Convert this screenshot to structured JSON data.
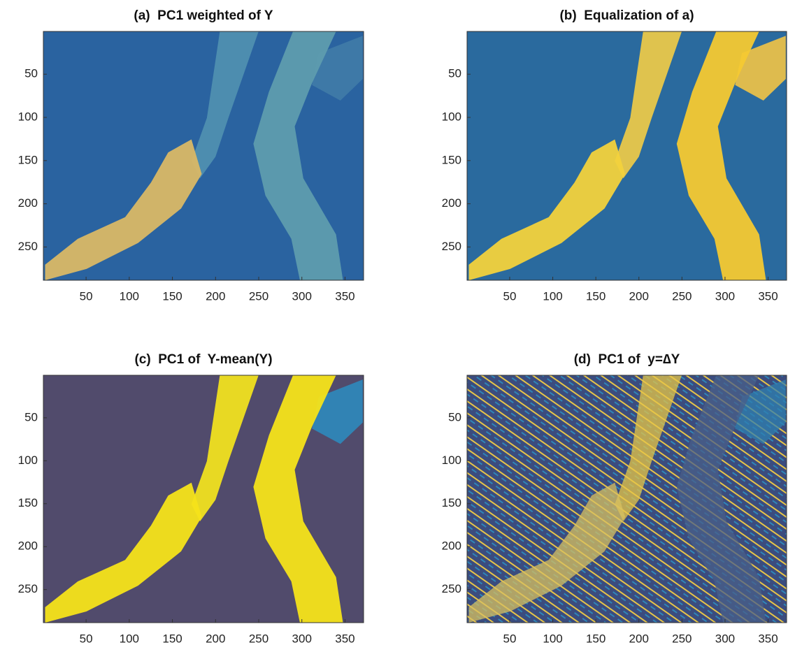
{
  "chart_data": [
    {
      "type": "image",
      "title": "(a)  PC1 weighted of Y",
      "colors": {
        "background": "#2a63a0",
        "river": "#5e9cae",
        "plume": "#4f8fb0",
        "city": "#d9b866",
        "loop": "#3f7aa8"
      },
      "xlim": [
        0.5,
        371.5
      ],
      "ylim": [
        288.5,
        0.5
      ],
      "xticks": [
        50,
        100,
        150,
        200,
        250,
        300,
        350
      ],
      "yticks": [
        50,
        100,
        150,
        200,
        250
      ]
    },
    {
      "type": "image",
      "title": "(b)  Equalization of a)",
      "colors": {
        "background": "#2a6a9e",
        "river": "#f4c932",
        "plume": "#e9c84a",
        "city": "#f2d23c",
        "loop": "#e8c04a"
      },
      "xlim": [
        0.5,
        371.5
      ],
      "ylim": [
        288.5,
        0.5
      ],
      "xticks": [
        50,
        100,
        150,
        200,
        250,
        300,
        350
      ],
      "yticks": [
        50,
        100,
        150,
        200,
        250
      ]
    },
    {
      "type": "image",
      "title": "(c)  PC1 of  Y-mean(Y)",
      "colors": {
        "background": "#514b6c",
        "river": "#f5e31a",
        "plume": "#f0e020",
        "city": "#f5e31a",
        "loop": "#2f86b8"
      },
      "xlim": [
        0.5,
        371.5
      ],
      "ylim": [
        288.5,
        0.5
      ],
      "xticks": [
        50,
        100,
        150,
        200,
        250,
        300,
        350
      ],
      "yticks": [
        50,
        100,
        150,
        200,
        250
      ]
    },
    {
      "type": "image",
      "title": "(d)  PC1 of  y=∆Y",
      "colors": {
        "background": "#3b4c7e",
        "river": "#4a5f8a",
        "plume": "#e7c547",
        "city": "#d8c060",
        "loop": "#2f7fb0"
      },
      "xlim": [
        0.5,
        371.5
      ],
      "ylim": [
        288.5,
        0.5
      ],
      "xticks": [
        50,
        100,
        150,
        200,
        250,
        300,
        350
      ],
      "yticks": [
        50,
        100,
        150,
        200,
        250
      ]
    }
  ]
}
